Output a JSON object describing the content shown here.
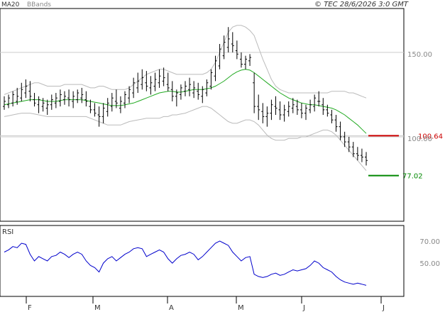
{
  "header": {
    "ma_label": "MA20",
    "bb_label": "BBands",
    "copyright": "© TEC 28/6/2026 3:0 GMT",
    "ma_color": "#22aa22",
    "bb_color": "#bbbbbb"
  },
  "rsi_panel": {
    "label": "RSI",
    "color": "#0000cc"
  },
  "levels": {
    "resistance": {
      "value": 100.64,
      "label": "100.64",
      "color": "#cc0000"
    },
    "support": {
      "value": 77.02,
      "label": "77.02",
      "color": "#008800"
    }
  },
  "chart_data": [
    {
      "type": "line",
      "y_ticks": [
        {
          "value": 150,
          "label": "150.00"
        },
        {
          "value": 100,
          "label": "100.00"
        }
      ],
      "x_ticks": [
        "F",
        "M",
        "A",
        "M",
        "J",
        "J"
      ],
      "candles": [
        [
          118,
          124,
          116,
          121
        ],
        [
          119,
          125,
          117,
          123
        ],
        [
          120,
          127,
          118,
          125
        ],
        [
          121,
          129,
          119,
          124
        ],
        [
          123,
          132,
          121,
          128
        ],
        [
          126,
          134,
          123,
          130
        ],
        [
          127,
          133,
          121,
          124
        ],
        [
          122,
          126,
          118,
          120
        ],
        [
          119,
          124,
          114,
          122
        ],
        [
          118,
          123,
          115,
          120
        ],
        [
          117,
          122,
          113,
          119
        ],
        [
          119,
          125,
          116,
          122
        ],
        [
          120,
          126,
          117,
          123
        ],
        [
          121,
          128,
          118,
          125
        ],
        [
          122,
          127,
          119,
          124
        ],
        [
          123,
          128,
          118,
          122
        ],
        [
          121,
          127,
          117,
          124
        ],
        [
          122,
          128,
          120,
          126
        ],
        [
          123,
          129,
          120,
          125
        ],
        [
          122,
          127,
          118,
          121
        ],
        [
          118,
          122,
          114,
          116
        ],
        [
          116,
          120,
          112,
          114
        ],
        [
          113,
          118,
          106,
          112
        ],
        [
          112,
          120,
          108,
          117
        ],
        [
          115,
          123,
          112,
          120
        ],
        [
          118,
          126,
          115,
          123
        ],
        [
          121,
          128,
          117,
          120
        ],
        [
          117,
          124,
          114,
          121
        ],
        [
          120,
          127,
          117,
          125
        ],
        [
          123,
          130,
          120,
          128
        ],
        [
          126,
          135,
          123,
          132
        ],
        [
          129,
          138,
          126,
          133
        ],
        [
          131,
          140,
          128,
          135
        ],
        [
          132,
          139,
          127,
          130
        ],
        [
          129,
          136,
          125,
          132
        ],
        [
          130,
          138,
          127,
          134
        ],
        [
          132,
          140,
          129,
          136
        ],
        [
          133,
          141,
          130,
          135
        ],
        [
          131,
          138,
          127,
          129
        ],
        [
          128,
          133,
          121,
          124
        ],
        [
          124,
          128,
          118,
          126
        ],
        [
          125,
          131,
          122,
          129
        ],
        [
          127,
          133,
          124,
          130
        ],
        [
          128,
          135,
          124,
          131
        ],
        [
          126,
          133,
          123,
          129
        ],
        [
          127,
          132,
          122,
          125
        ],
        [
          124,
          130,
          120,
          128
        ],
        [
          126,
          134,
          124,
          132
        ],
        [
          130,
          140,
          128,
          138
        ],
        [
          136,
          148,
          133,
          145
        ],
        [
          142,
          155,
          140,
          152
        ],
        [
          148,
          160,
          146,
          156
        ],
        [
          153,
          165,
          150,
          158
        ],
        [
          155,
          162,
          150,
          154
        ],
        [
          151,
          157,
          146,
          149
        ],
        [
          146,
          150,
          141,
          143
        ],
        [
          143,
          148,
          140,
          146
        ],
        [
          145,
          149,
          142,
          147
        ],
        [
          132,
          138,
          114,
          118
        ],
        [
          118,
          125,
          110,
          116
        ],
        [
          115,
          120,
          108,
          112
        ],
        [
          112,
          118,
          106,
          114
        ],
        [
          114,
          122,
          110,
          119
        ],
        [
          118,
          124,
          113,
          117
        ],
        [
          116,
          121,
          110,
          113
        ],
        [
          113,
          119,
          109,
          116
        ],
        [
          115,
          121,
          112,
          118
        ],
        [
          117,
          123,
          114,
          119
        ],
        [
          118,
          122,
          113,
          116
        ],
        [
          116,
          120,
          111,
          114
        ],
        [
          114,
          119,
          110,
          117
        ],
        [
          116,
          122,
          114,
          119
        ],
        [
          118,
          125,
          115,
          123
        ],
        [
          121,
          127,
          118,
          121
        ],
        [
          119,
          123,
          113,
          116
        ],
        [
          116,
          119,
          112,
          114
        ],
        [
          113,
          116,
          108,
          110
        ],
        [
          110,
          113,
          103,
          106
        ],
        [
          106,
          109,
          98,
          100
        ],
        [
          100,
          103,
          94,
          97
        ],
        [
          97,
          100,
          91,
          94
        ],
        [
          94,
          97,
          88,
          90
        ],
        [
          90,
          94,
          86,
          89
        ],
        [
          89,
          93,
          85,
          88
        ],
        [
          88,
          91,
          83,
          86
        ]
      ],
      "ma20": [
        119,
        119.5,
        120,
        120.5,
        121,
        121.5,
        122,
        122,
        122,
        121.5,
        121,
        121,
        121,
        121.5,
        122,
        122,
        122,
        122,
        122,
        121.5,
        121,
        120.5,
        120,
        119.5,
        119,
        118.5,
        118.5,
        118.5,
        119,
        119.5,
        120,
        121,
        122,
        123,
        124,
        125,
        126,
        126.5,
        127,
        127,
        126.5,
        126.5,
        127,
        127.5,
        128,
        128,
        128,
        128.5,
        129,
        130,
        131.5,
        133,
        135,
        137,
        138.5,
        139.5,
        140,
        139.5,
        138,
        136,
        134,
        132,
        130,
        128,
        126,
        124.5,
        123,
        122,
        121,
        120,
        119.5,
        119,
        119,
        118.5,
        118,
        117.5,
        117,
        116,
        114.5,
        113,
        111,
        109,
        107,
        104.5,
        102
      ],
      "bb_upper": [
        125,
        126,
        127,
        128,
        129,
        130,
        131,
        132,
        132,
        131,
        130,
        130,
        130,
        130,
        131,
        131,
        131,
        131,
        131,
        130,
        129,
        129,
        130,
        130,
        129,
        128,
        128,
        128,
        128,
        129,
        131,
        133,
        135,
        137,
        138,
        139,
        140,
        140,
        139,
        138,
        137,
        137,
        137,
        137,
        137,
        137,
        137,
        138,
        140,
        144,
        150,
        156,
        162,
        165,
        166,
        166,
        165,
        163,
        160,
        153,
        146,
        140,
        134,
        130,
        128,
        127,
        126,
        126,
        126,
        126,
        126,
        126,
        126,
        126,
        126,
        126,
        127,
        127,
        127,
        127,
        126,
        126,
        125,
        124,
        123
      ],
      "bb_lower": [
        112,
        112.5,
        113,
        113.5,
        114,
        114,
        114,
        113.5,
        113,
        112.5,
        112,
        112,
        112,
        112,
        112,
        112,
        112,
        112,
        112,
        112,
        111,
        110,
        109,
        108,
        107,
        107,
        107,
        107,
        108,
        109,
        109.5,
        110,
        110.5,
        111,
        111,
        111,
        111,
        112,
        112,
        113,
        113,
        113.5,
        114,
        115,
        116,
        117,
        118,
        118,
        117,
        115,
        113,
        111,
        109,
        108,
        108,
        109,
        110,
        110,
        109,
        107,
        104,
        101,
        99,
        98,
        98,
        98,
        99,
        99,
        99,
        100,
        100,
        101,
        102,
        103,
        104,
        104,
        103,
        101,
        98,
        95,
        92,
        89,
        86,
        83,
        80
      ],
      "rsi": [
        60,
        62,
        65,
        64,
        68,
        67,
        58,
        52,
        56,
        54,
        52,
        56,
        57,
        60,
        58,
        55,
        58,
        60,
        58,
        52,
        48,
        46,
        42,
        50,
        54,
        56,
        52,
        55,
        58,
        60,
        63,
        64,
        63,
        56,
        58,
        60,
        62,
        60,
        54,
        50,
        54,
        57,
        58,
        60,
        58,
        53,
        56,
        60,
        64,
        68,
        70,
        68,
        66,
        60,
        56,
        52,
        55,
        56,
        40,
        38,
        37,
        38,
        40,
        41,
        39,
        40,
        42,
        44,
        43,
        44,
        45,
        48,
        52,
        50,
        46,
        44,
        42,
        38,
        35,
        33,
        32,
        31,
        32,
        31,
        30
      ],
      "rsi_ticks": [
        {
          "value": 70,
          "label": "70.00"
        },
        {
          "value": 50,
          "label": "50.00"
        }
      ]
    }
  ]
}
